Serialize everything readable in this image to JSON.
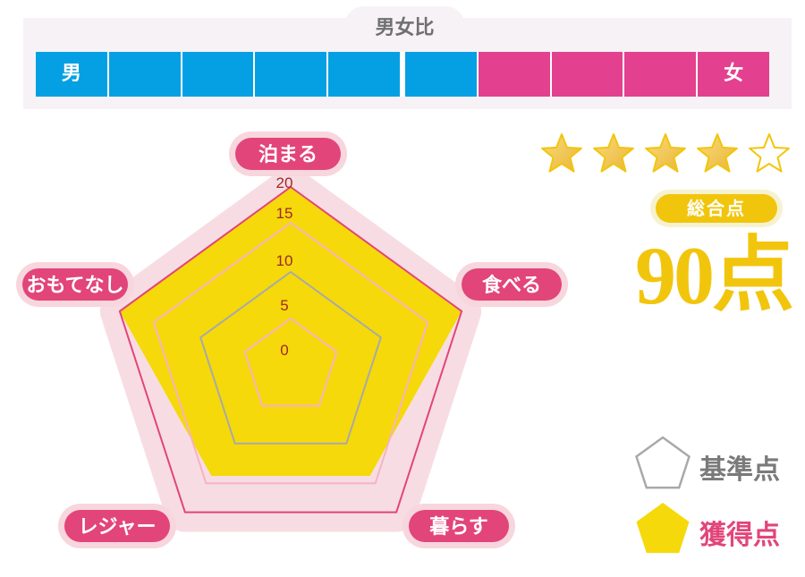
{
  "gender_ratio": {
    "title": "男女比",
    "male_label": "男",
    "female_label": "女",
    "male_segments": 6,
    "female_segments": 4,
    "total_segments": 10,
    "male_color": "#05a0e3",
    "female_color": "#e3418f"
  },
  "chart_data": {
    "type": "radar",
    "categories": [
      "泊まる",
      "食べる",
      "暮らす",
      "レジャー",
      "おもてなし"
    ],
    "series": [
      {
        "name": "獲得点",
        "values": [
          20,
          20,
          15,
          15,
          20
        ],
        "color": "#f5d90a"
      },
      {
        "name": "基準点",
        "values": [
          10,
          10,
          10,
          10,
          10
        ],
        "color": "#a7a9ac"
      }
    ],
    "ticks": [
      "0",
      "5",
      "10",
      "15",
      "20"
    ],
    "rlim": [
      0,
      20
    ],
    "legend_position": "bottom-right"
  },
  "rating": {
    "stars": 4,
    "max": 5,
    "star_color": "#f2c50d"
  },
  "total": {
    "label": "総合点",
    "value": "90点"
  },
  "legend": {
    "reference_label": "基準点",
    "acquired_label": "獲得点",
    "reference_color": "#7a7a7a",
    "acquired_color": "#e2457a"
  }
}
